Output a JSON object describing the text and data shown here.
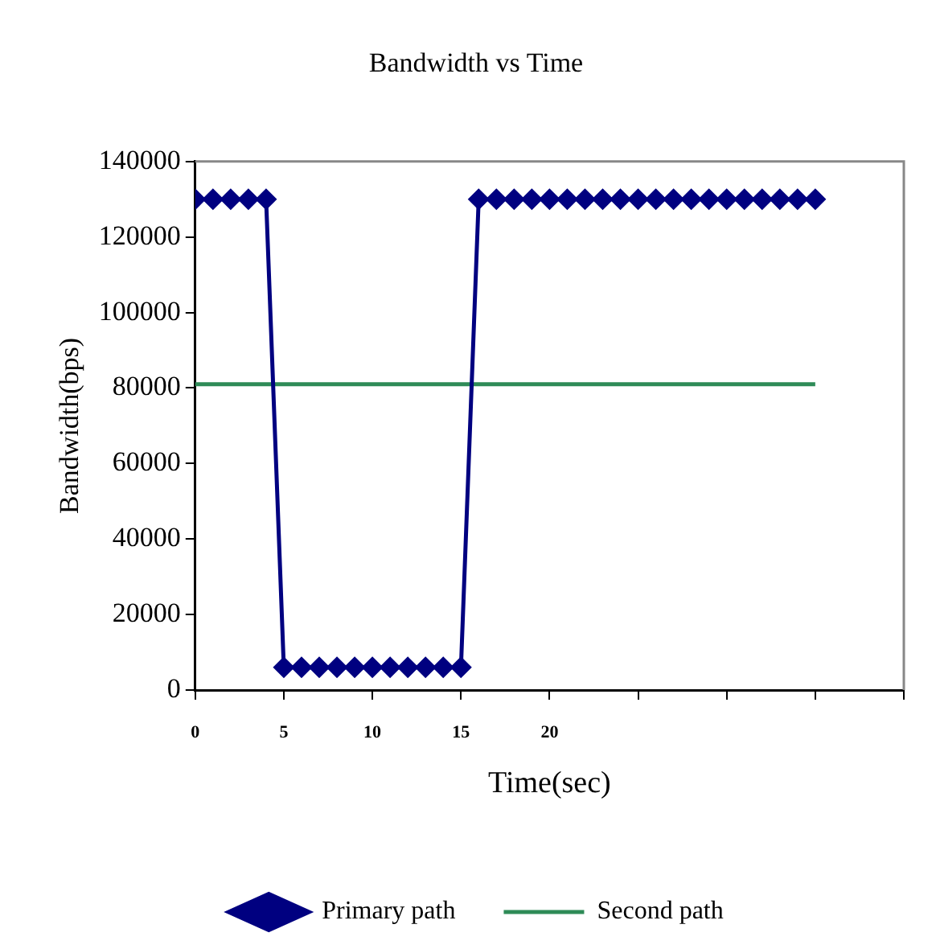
{
  "chart_data": {
    "type": "line",
    "title": "Bandwidth vs Time",
    "xlabel": "Time(sec)",
    "ylabel": "Bandwidth(bps)",
    "xlim": [
      0,
      40
    ],
    "xticks": [
      0,
      5,
      10,
      15,
      20,
      {
        "value": 25,
        "label": null
      },
      {
        "value": 30,
        "label": null
      },
      {
        "value": 35,
        "label": null
      },
      {
        "value": 40,
        "label": null
      }
    ],
    "ylim": [
      0,
      140000
    ],
    "yticks": [
      0,
      20000,
      40000,
      60000,
      80000,
      100000,
      120000,
      140000
    ],
    "grid": false,
    "legend": "bottom",
    "series": [
      {
        "name": "Primary path",
        "color": "#000080",
        "marker": "diamond",
        "x": [
          0,
          1,
          2,
          3,
          4,
          5,
          6,
          7,
          8,
          9,
          10,
          11,
          12,
          13,
          14,
          15,
          16,
          17,
          18,
          19,
          20,
          21,
          22,
          23,
          24,
          25,
          26,
          27,
          28,
          29,
          30,
          31,
          32,
          33,
          34,
          35
        ],
        "values": [
          130000,
          130000,
          130000,
          130000,
          130000,
          6000,
          6000,
          6000,
          6000,
          6000,
          6000,
          6000,
          6000,
          6000,
          6000,
          6000,
          130000,
          130000,
          130000,
          130000,
          130000,
          130000,
          130000,
          130000,
          130000,
          130000,
          130000,
          130000,
          130000,
          130000,
          130000,
          130000,
          130000,
          130000,
          130000,
          130000
        ]
      },
      {
        "name": "Second path",
        "color": "#2e8b57",
        "marker": "none",
        "x": [
          0,
          35
        ],
        "values": [
          81000,
          81000
        ]
      }
    ]
  }
}
